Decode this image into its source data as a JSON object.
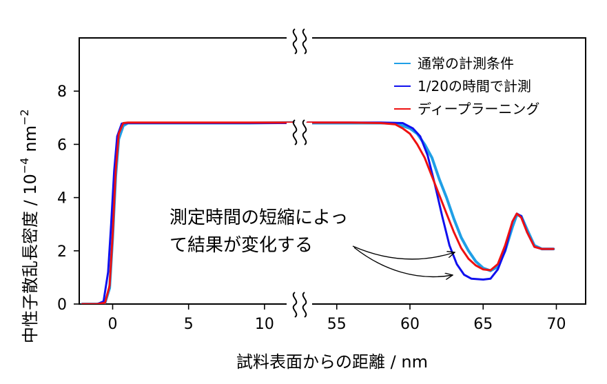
{
  "chart_data": {
    "type": "line",
    "title": "",
    "xlabel": "試料表面からの距離 / nm",
    "ylabel": "中性子散乱長密度 / 10",
    "ylabel_exponent": "−4",
    "ylabel_unit": "nm",
    "ylabel_unit_exponent": "−2",
    "ylim": [
      0,
      10
    ],
    "grid": false,
    "legend_position": "top-right",
    "broken_x_axis": true,
    "x_ranges": [
      [
        -2.2,
        12
      ],
      [
        52.8,
        72
      ]
    ],
    "x_ticks": [
      {
        "value": 0,
        "label": "0"
      },
      {
        "value": 5,
        "label": "5"
      },
      {
        "value": 10,
        "label": "10"
      },
      {
        "value": 55,
        "label": "55"
      },
      {
        "value": 60,
        "label": "60"
      },
      {
        "value": 65,
        "label": "65"
      },
      {
        "value": 70,
        "label": "70"
      }
    ],
    "y_ticks": [
      {
        "value": 0,
        "label": "0"
      },
      {
        "value": 2,
        "label": "2"
      },
      {
        "value": 4,
        "label": "4"
      },
      {
        "value": 6,
        "label": "6"
      },
      {
        "value": 8,
        "label": "8"
      }
    ],
    "series": [
      {
        "name": "通常の計測条件",
        "color": "#1f9fe6",
        "points": [
          [
            -2.0,
            0.0
          ],
          [
            -1.0,
            0.0
          ],
          [
            -0.5,
            0.05
          ],
          [
            -0.2,
            0.6
          ],
          [
            0.0,
            2.5
          ],
          [
            0.2,
            4.8
          ],
          [
            0.4,
            6.2
          ],
          [
            0.7,
            6.7
          ],
          [
            1.0,
            6.8
          ],
          [
            3,
            6.8
          ],
          [
            6,
            6.8
          ],
          [
            9,
            6.8
          ],
          [
            11.9,
            6.82
          ],
          [
            53.0,
            6.8
          ],
          [
            56,
            6.8
          ],
          [
            58,
            6.8
          ],
          [
            59,
            6.79
          ],
          [
            60,
            6.6
          ],
          [
            60.5,
            6.4
          ],
          [
            61,
            6.0
          ],
          [
            61.5,
            5.5
          ],
          [
            62,
            4.7
          ],
          [
            62.5,
            4.0
          ],
          [
            63,
            3.2
          ],
          [
            63.5,
            2.5
          ],
          [
            64,
            2.0
          ],
          [
            64.5,
            1.6
          ],
          [
            65,
            1.35
          ],
          [
            65.5,
            1.25
          ],
          [
            66,
            1.4
          ],
          [
            66.5,
            2.0
          ],
          [
            67,
            2.9
          ],
          [
            67.3,
            3.35
          ],
          [
            67.6,
            3.3
          ],
          [
            68,
            2.8
          ],
          [
            68.5,
            2.2
          ],
          [
            69,
            2.07
          ],
          [
            69.8,
            2.07
          ]
        ]
      },
      {
        "name": "1/20の時間で計測",
        "color": "#1010ee",
        "points": [
          [
            -2.0,
            0.0
          ],
          [
            -1.0,
            0.0
          ],
          [
            -0.6,
            0.1
          ],
          [
            -0.3,
            1.2
          ],
          [
            -0.1,
            3.0
          ],
          [
            0.1,
            5.0
          ],
          [
            0.3,
            6.3
          ],
          [
            0.6,
            6.78
          ],
          [
            1.0,
            6.8
          ],
          [
            3,
            6.8
          ],
          [
            6,
            6.8
          ],
          [
            9,
            6.8
          ],
          [
            11.9,
            6.8
          ],
          [
            53.0,
            6.82
          ],
          [
            56,
            6.82
          ],
          [
            58,
            6.82
          ],
          [
            59.5,
            6.8
          ],
          [
            60.2,
            6.6
          ],
          [
            60.7,
            6.3
          ],
          [
            61.2,
            5.6
          ],
          [
            61.7,
            4.5
          ],
          [
            62.2,
            3.3
          ],
          [
            62.7,
            2.2
          ],
          [
            63.2,
            1.5
          ],
          [
            63.7,
            1.1
          ],
          [
            64.2,
            0.95
          ],
          [
            65,
            0.92
          ],
          [
            65.5,
            0.95
          ],
          [
            66,
            1.3
          ],
          [
            66.5,
            2.0
          ],
          [
            67,
            3.1
          ],
          [
            67.3,
            3.4
          ],
          [
            67.6,
            3.3
          ],
          [
            68,
            2.7
          ],
          [
            68.5,
            2.15
          ],
          [
            69,
            2.07
          ],
          [
            69.8,
            2.07
          ]
        ]
      },
      {
        "name": "ディープラーニング",
        "color": "#ee1111",
        "points": [
          [
            -2.0,
            0.0
          ],
          [
            -1.0,
            0.0
          ],
          [
            -0.5,
            0.05
          ],
          [
            -0.2,
            0.7
          ],
          [
            0.0,
            2.6
          ],
          [
            0.2,
            5.0
          ],
          [
            0.4,
            6.4
          ],
          [
            0.7,
            6.8
          ],
          [
            1.0,
            6.82
          ],
          [
            3,
            6.82
          ],
          [
            6,
            6.82
          ],
          [
            9,
            6.82
          ],
          [
            11.9,
            6.82
          ],
          [
            53.0,
            6.82
          ],
          [
            56,
            6.82
          ],
          [
            58,
            6.8
          ],
          [
            59,
            6.75
          ],
          [
            59.5,
            6.6
          ],
          [
            60,
            6.4
          ],
          [
            60.5,
            6.0
          ],
          [
            61,
            5.5
          ],
          [
            61.5,
            4.8
          ],
          [
            62,
            4.1
          ],
          [
            62.5,
            3.4
          ],
          [
            63,
            2.7
          ],
          [
            63.5,
            2.1
          ],
          [
            64,
            1.7
          ],
          [
            64.5,
            1.45
          ],
          [
            65,
            1.3
          ],
          [
            65.5,
            1.27
          ],
          [
            66,
            1.5
          ],
          [
            66.5,
            2.2
          ],
          [
            67,
            3.1
          ],
          [
            67.3,
            3.4
          ],
          [
            67.6,
            3.25
          ],
          [
            68,
            2.7
          ],
          [
            68.5,
            2.15
          ],
          [
            69,
            2.07
          ],
          [
            69.8,
            2.07
          ]
        ]
      }
    ],
    "annotations": [
      {
        "text_lines": [
          "測定時間の短縮によっ",
          "て結果が変化する"
        ]
      }
    ]
  }
}
